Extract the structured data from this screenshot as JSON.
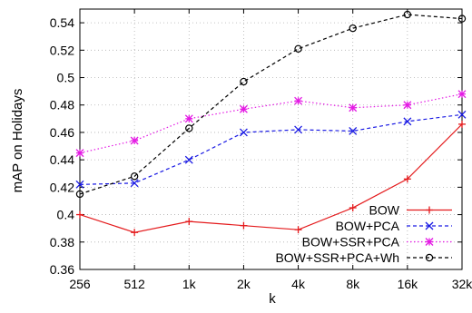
{
  "chart_data": {
    "type": "line",
    "title": "",
    "xlabel": "k",
    "ylabel": "mAP on Holidays",
    "categories": [
      "256",
      "512",
      "1k",
      "2k",
      "4k",
      "8k",
      "16k",
      "32k"
    ],
    "yticks": [
      "0.36",
      "0.38",
      "0.4",
      "0.42",
      "0.44",
      "0.46",
      "0.48",
      "0.5",
      "0.52",
      "0.54"
    ],
    "ylim": [
      0.36,
      0.55
    ],
    "grid": true,
    "legend_position": "bottom-right",
    "series": [
      {
        "name": "BOW",
        "values": [
          0.4,
          0.387,
          0.395,
          0.392,
          0.389,
          0.405,
          0.426,
          0.466
        ],
        "color": "#e41a1c",
        "line_style": "solid",
        "marker": "plus"
      },
      {
        "name": "BOW+PCA",
        "values": [
          0.422,
          0.423,
          0.44,
          0.46,
          0.462,
          0.461,
          0.468,
          0.473
        ],
        "color": "#1a1ae4",
        "line_style": "dashed",
        "marker": "cross"
      },
      {
        "name": "BOW+SSR+PCA",
        "values": [
          0.445,
          0.454,
          0.47,
          0.477,
          0.483,
          0.478,
          0.48,
          0.488
        ],
        "color": "#e41ae4",
        "line_style": "dotted",
        "marker": "star"
      },
      {
        "name": "BOW+SSR+PCA+Wh",
        "values": [
          0.415,
          0.428,
          0.463,
          0.497,
          0.521,
          0.536,
          0.546,
          0.543
        ],
        "color": "#000000",
        "line_style": "dashed",
        "marker": "circle"
      }
    ]
  }
}
